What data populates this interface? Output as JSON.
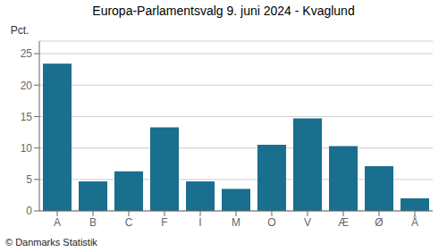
{
  "chart_data": {
    "type": "bar",
    "title": "Europa-Parlamentsvalg 9. juni 2024 - Kvaglund",
    "categories": [
      "A",
      "B",
      "C",
      "F",
      "I",
      "M",
      "O",
      "V",
      "Æ",
      "Ø",
      "Å"
    ],
    "values": [
      23.4,
      4.7,
      6.3,
      13.3,
      4.7,
      3.5,
      10.5,
      14.7,
      10.3,
      7.1,
      2.0
    ],
    "color": "#1a6e8e",
    "ylabel": "Pct.",
    "ylim": [
      0,
      27
    ],
    "yticks": [
      0,
      5,
      10,
      15,
      20,
      25
    ],
    "grid": true,
    "annotations": [
      "© Danmarks Statistik"
    ]
  }
}
